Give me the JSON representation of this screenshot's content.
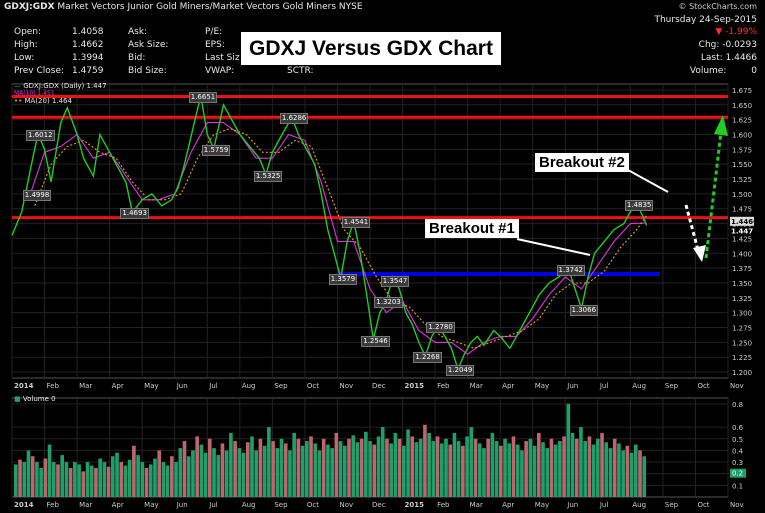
{
  "header": {
    "symbol": "GDXJ:GDX",
    "description": "Market Vectors Junior Gold Miners/Market Vectors Gold Miners",
    "exchange": "NYSE",
    "site": "© StockCharts.com",
    "date": "Thursday  24-Sep-2015",
    "change_pct": "-1.99%",
    "change_label": "Chg: -0.0293",
    "last_label": "Last: 1.4466",
    "volume_label": "Volume:",
    "volume_value": "0",
    "quote_rows": [
      [
        "Open:",
        "1.4058",
        "Ask:",
        "",
        "P/E:"
      ],
      [
        "High:",
        "1.4662",
        "Ask Size:",
        "",
        "EPS:"
      ],
      [
        "Low:",
        "1.3994",
        "Bid:",
        "",
        "Last Size:"
      ],
      [
        "Prev Close:",
        "1.4759",
        "Bid Size:",
        "",
        "VWAP:"
      ]
    ],
    "sctr_label": "SCTR:"
  },
  "chart_title": "GDXJ Versus GDX Chart",
  "annotations": {
    "breakout1": "Breakout #1",
    "breakout2": "Breakout #2"
  },
  "legend": {
    "main": "GDXJ:GDX (Daily) 1.447",
    "ma10": "MA(10) 1.451",
    "ma20": "MA(20) 1.464",
    "volume": "Volume 0"
  },
  "colors": {
    "price": "#22cc22",
    "ma10": "#dd33dd",
    "ma20": "#e8a020",
    "resistance": "#ee1111",
    "support": "#0000dd",
    "vol_up": "#1fa06a",
    "vol_down": "#c0646e",
    "arrow_up": "#22cc22",
    "arrow_down": "#ffffff"
  },
  "chart_data": {
    "type": "line",
    "x_axis": [
      "2014",
      "Feb",
      "Mar",
      "Apr",
      "May",
      "Jun",
      "Jul",
      "Aug",
      "Sep",
      "Oct",
      "Nov",
      "Dec",
      "2015",
      "Feb",
      "Mar",
      "Apr",
      "May",
      "Jun",
      "Jul",
      "Aug",
      "Sep",
      "Oct",
      "Nov"
    ],
    "y_ticks": [
      1.675,
      1.65,
      1.625,
      1.6,
      1.575,
      1.55,
      1.525,
      1.5,
      1.475,
      1.45,
      1.425,
      1.4,
      1.375,
      1.35,
      1.325,
      1.3,
      1.275,
      1.25,
      1.225,
      1.2
    ],
    "ylim": [
      1.19,
      1.685
    ],
    "price_labels": [
      "1.4466",
      "1.447"
    ],
    "series": [
      {
        "name": "GDXJ:GDX (Daily) 1.447",
        "points": [
          [
            0,
            1.43
          ],
          [
            0.3,
            1.47
          ],
          [
            0.6,
            1.55
          ],
          [
            0.8,
            1.601
          ],
          [
            1.0,
            1.575
          ],
          [
            1.2,
            1.52
          ],
          [
            1.5,
            1.62
          ],
          [
            1.7,
            1.645
          ],
          [
            2.0,
            1.6
          ],
          [
            2.2,
            1.56
          ],
          [
            2.5,
            1.53
          ],
          [
            2.7,
            1.6
          ],
          [
            3.0,
            1.57
          ],
          [
            3.2,
            1.55
          ],
          [
            3.5,
            1.52
          ],
          [
            3.7,
            1.469
          ],
          [
            4.0,
            1.49
          ],
          [
            4.3,
            1.5
          ],
          [
            4.6,
            1.48
          ],
          [
            4.9,
            1.49
          ],
          [
            5.1,
            1.51
          ],
          [
            5.3,
            1.55
          ],
          [
            5.6,
            1.62
          ],
          [
            5.8,
            1.665
          ],
          [
            6.0,
            1.6
          ],
          [
            6.2,
            1.576
          ],
          [
            6.5,
            1.65
          ],
          [
            6.8,
            1.62
          ],
          [
            7.0,
            1.6
          ],
          [
            7.3,
            1.58
          ],
          [
            7.6,
            1.56
          ],
          [
            7.8,
            1.533
          ],
          [
            8.0,
            1.57
          ],
          [
            8.3,
            1.6
          ],
          [
            8.6,
            1.629
          ],
          [
            8.8,
            1.6
          ],
          [
            9.0,
            1.58
          ],
          [
            9.3,
            1.55
          ],
          [
            9.5,
            1.5
          ],
          [
            9.7,
            1.44
          ],
          [
            9.9,
            1.4
          ],
          [
            10.1,
            1.358
          ],
          [
            10.3,
            1.42
          ],
          [
            10.5,
            1.454
          ],
          [
            10.7,
            1.4
          ],
          [
            10.9,
            1.33
          ],
          [
            11.1,
            1.255
          ],
          [
            11.3,
            1.3
          ],
          [
            11.5,
            1.32
          ],
          [
            11.7,
            1.36
          ],
          [
            11.9,
            1.34
          ],
          [
            12.1,
            1.3
          ],
          [
            12.3,
            1.28
          ],
          [
            12.5,
            1.25
          ],
          [
            12.7,
            1.227
          ],
          [
            12.9,
            1.26
          ],
          [
            13.1,
            1.278
          ],
          [
            13.3,
            1.26
          ],
          [
            13.5,
            1.24
          ],
          [
            13.7,
            1.205
          ],
          [
            13.9,
            1.23
          ],
          [
            14.1,
            1.25
          ],
          [
            14.3,
            1.26
          ],
          [
            14.5,
            1.245
          ],
          [
            14.8,
            1.27
          ],
          [
            15.0,
            1.26
          ],
          [
            15.3,
            1.24
          ],
          [
            15.6,
            1.27
          ],
          [
            15.9,
            1.3
          ],
          [
            16.2,
            1.33
          ],
          [
            16.5,
            1.35
          ],
          [
            16.8,
            1.36
          ],
          [
            17.1,
            1.374
          ],
          [
            17.3,
            1.34
          ],
          [
            17.5,
            1.307
          ],
          [
            17.7,
            1.36
          ],
          [
            17.9,
            1.4
          ],
          [
            18.2,
            1.42
          ],
          [
            18.5,
            1.44
          ],
          [
            18.8,
            1.45
          ],
          [
            19.0,
            1.47
          ],
          [
            19.2,
            1.4835
          ],
          [
            19.4,
            1.46
          ],
          [
            19.5,
            1.447
          ]
        ]
      },
      {
        "name": "MA(10) 1.451",
        "points": [
          [
            0.5,
            1.49
          ],
          [
            1.0,
            1.57
          ],
          [
            1.5,
            1.58
          ],
          [
            2.0,
            1.6
          ],
          [
            2.5,
            1.56
          ],
          [
            3.0,
            1.57
          ],
          [
            3.5,
            1.53
          ],
          [
            4.0,
            1.49
          ],
          [
            4.5,
            1.49
          ],
          [
            5.0,
            1.5
          ],
          [
            5.5,
            1.57
          ],
          [
            6.0,
            1.62
          ],
          [
            6.5,
            1.62
          ],
          [
            7.0,
            1.6
          ],
          [
            7.5,
            1.56
          ],
          [
            8.0,
            1.56
          ],
          [
            8.5,
            1.6
          ],
          [
            9.0,
            1.59
          ],
          [
            9.5,
            1.52
          ],
          [
            10.0,
            1.42
          ],
          [
            10.5,
            1.42
          ],
          [
            11.0,
            1.34
          ],
          [
            11.5,
            1.3
          ],
          [
            12.0,
            1.32
          ],
          [
            12.5,
            1.27
          ],
          [
            13.0,
            1.25
          ],
          [
            13.5,
            1.25
          ],
          [
            14.0,
            1.23
          ],
          [
            14.5,
            1.25
          ],
          [
            15.0,
            1.26
          ],
          [
            15.5,
            1.26
          ],
          [
            16.0,
            1.29
          ],
          [
            16.5,
            1.33
          ],
          [
            17.0,
            1.36
          ],
          [
            17.5,
            1.34
          ],
          [
            18.0,
            1.38
          ],
          [
            18.5,
            1.42
          ],
          [
            19.0,
            1.45
          ],
          [
            19.5,
            1.451
          ]
        ]
      },
      {
        "name": "MA(20) 1.464",
        "points": [
          [
            0.7,
            1.48
          ],
          [
            1.2,
            1.55
          ],
          [
            1.7,
            1.58
          ],
          [
            2.2,
            1.59
          ],
          [
            2.7,
            1.57
          ],
          [
            3.2,
            1.56
          ],
          [
            3.7,
            1.52
          ],
          [
            4.2,
            1.49
          ],
          [
            4.7,
            1.49
          ],
          [
            5.2,
            1.5
          ],
          [
            5.7,
            1.56
          ],
          [
            6.2,
            1.6
          ],
          [
            6.7,
            1.61
          ],
          [
            7.2,
            1.6
          ],
          [
            7.7,
            1.57
          ],
          [
            8.2,
            1.57
          ],
          [
            8.7,
            1.59
          ],
          [
            9.2,
            1.58
          ],
          [
            9.7,
            1.51
          ],
          [
            10.2,
            1.44
          ],
          [
            10.7,
            1.41
          ],
          [
            11.2,
            1.36
          ],
          [
            11.7,
            1.32
          ],
          [
            12.2,
            1.31
          ],
          [
            12.7,
            1.28
          ],
          [
            13.2,
            1.26
          ],
          [
            13.7,
            1.25
          ],
          [
            14.2,
            1.24
          ],
          [
            14.7,
            1.25
          ],
          [
            15.2,
            1.26
          ],
          [
            15.7,
            1.27
          ],
          [
            16.2,
            1.29
          ],
          [
            16.7,
            1.33
          ],
          [
            17.2,
            1.35
          ],
          [
            17.7,
            1.35
          ],
          [
            18.2,
            1.37
          ],
          [
            18.7,
            1.41
          ],
          [
            19.2,
            1.44
          ],
          [
            19.5,
            1.464
          ]
        ]
      }
    ],
    "value_labels": [
      {
        "text": "1.6012",
        "x": 0.8,
        "y": 1.601
      },
      {
        "text": "1.4998",
        "x": 0.7,
        "y": 1.4998
      },
      {
        "text": "1.4693",
        "x": 3.7,
        "y": 1.4693
      },
      {
        "text": "1.6651",
        "x": 5.8,
        "y": 1.6651
      },
      {
        "text": "1.5759",
        "x": 6.2,
        "y": 1.5759
      },
      {
        "text": "1.5325",
        "x": 7.8,
        "y": 1.5325
      },
      {
        "text": "1.6286",
        "x": 8.6,
        "y": 1.6286
      },
      {
        "text": "1.4541",
        "x": 10.5,
        "y": 1.4541
      },
      {
        "text": "1.3579",
        "x": 10.1,
        "y": 1.3579
      },
      {
        "text": "1.3547",
        "x": 11.7,
        "y": 1.3547
      },
      {
        "text": "1.3203",
        "x": 11.5,
        "y": 1.3203
      },
      {
        "text": "1.2546",
        "x": 11.1,
        "y": 1.2546
      },
      {
        "text": "1.2780",
        "x": 13.1,
        "y": 1.278
      },
      {
        "text": "1.2268",
        "x": 12.7,
        "y": 1.2268
      },
      {
        "text": "1.2049",
        "x": 13.7,
        "y": 1.2049
      },
      {
        "text": "1.3742",
        "x": 17.1,
        "y": 1.3742
      },
      {
        "text": "1.3066",
        "x": 17.5,
        "y": 1.3066
      },
      {
        "text": "1.4835",
        "x": 19.2,
        "y": 1.4835
      }
    ],
    "horizontal_lines": [
      {
        "y": 1.664,
        "color": "#ee1111"
      },
      {
        "y": 1.629,
        "color": "#ee1111"
      },
      {
        "y": 1.46,
        "color": "#ee1111"
      }
    ],
    "support_line": {
      "y": 1.365,
      "x_start": 10.0,
      "x_end": 19.9,
      "color": "#0000dd"
    },
    "volume": {
      "label": "Volume 0",
      "y_ticks": [
        0.8,
        0.6,
        0.5,
        0.4,
        0.3,
        0.2,
        0.1
      ],
      "ylim": [
        0,
        0.85
      ],
      "current_label": "0.2",
      "bars": [
        0.28,
        0.32,
        0.3,
        0.4,
        0.35,
        0.3,
        0.25,
        0.33,
        0.45,
        0.3,
        0.28,
        0.36,
        0.3,
        0.25,
        0.3,
        0.28,
        0.22,
        0.3,
        0.27,
        0.25,
        0.33,
        0.3,
        0.26,
        0.35,
        0.38,
        0.3,
        0.27,
        0.32,
        0.44,
        0.36,
        0.3,
        0.25,
        0.28,
        0.33,
        0.4,
        0.3,
        0.27,
        0.35,
        0.3,
        0.42,
        0.48,
        0.35,
        0.4,
        0.52,
        0.45,
        0.38,
        0.5,
        0.42,
        0.36,
        0.46,
        0.4,
        0.55,
        0.48,
        0.42,
        0.38,
        0.47,
        0.52,
        0.4,
        0.5,
        0.44,
        0.6,
        0.48,
        0.42,
        0.5,
        0.46,
        0.4,
        0.55,
        0.5,
        0.44,
        0.48,
        0.52,
        0.46,
        0.4,
        0.5,
        0.45,
        0.42,
        0.55,
        0.48,
        0.44,
        0.5,
        0.53,
        0.47,
        0.5,
        0.56,
        0.48,
        0.45,
        0.52,
        0.6,
        0.5,
        0.46,
        0.55,
        0.5,
        0.44,
        0.58,
        0.52,
        0.47,
        0.5,
        0.62,
        0.55,
        0.48,
        0.52,
        0.46,
        0.5,
        0.45,
        0.55,
        0.48,
        0.44,
        0.52,
        0.6,
        0.5,
        0.46,
        0.42,
        0.5,
        0.55,
        0.48,
        0.44,
        0.5,
        0.46,
        0.52,
        0.45,
        0.4,
        0.48,
        0.5,
        0.44,
        0.55,
        0.47,
        0.42,
        0.5,
        0.45,
        0.48,
        0.52,
        0.8,
        0.55,
        0.5,
        0.6,
        0.48,
        0.52,
        0.45,
        0.5,
        0.55,
        0.47,
        0.42,
        0.5,
        0.46,
        0.4,
        0.44,
        0.38,
        0.45,
        0.4,
        0.35
      ]
    }
  }
}
